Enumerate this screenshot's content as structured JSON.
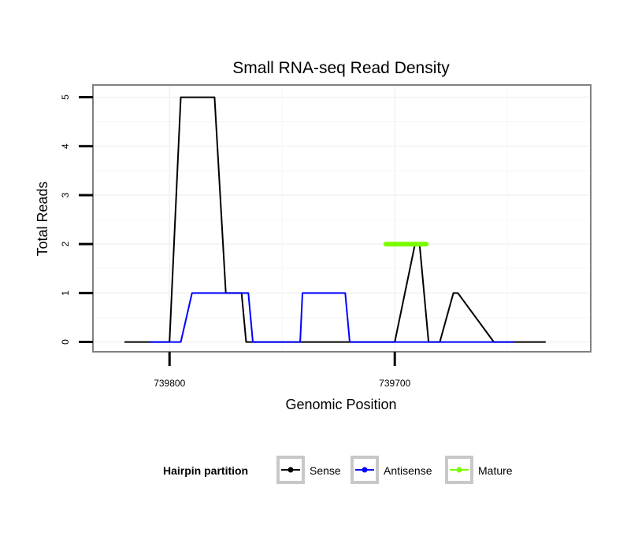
{
  "colors": {
    "sense": "#000000",
    "antisense": "#0000ff",
    "mature": "#7cfc00"
  },
  "chart_data": {
    "type": "line",
    "title": "Small RNA-seq Read Density",
    "xlabel": "Genomic Position",
    "ylabel": "Total Reads",
    "x_reversed": true,
    "xlim": [
      739834,
      739613
    ],
    "ylim": [
      -0.2,
      5.25
    ],
    "x_ticks": [
      {
        "value": 739800,
        "label": "739800"
      },
      {
        "value": 739700,
        "label": "739700"
      }
    ],
    "y_ticks": [
      {
        "value": 0,
        "label": "0"
      },
      {
        "value": 1,
        "label": "1"
      },
      {
        "value": 2,
        "label": "2"
      },
      {
        "value": 3,
        "label": "3"
      },
      {
        "value": 4,
        "label": "4"
      },
      {
        "value": 5,
        "label": "5"
      }
    ],
    "legend": {
      "title": "Hairpin partition",
      "position": "bottom"
    },
    "series": [
      {
        "name": "Sense",
        "color": "#000000",
        "x": [
          739820,
          739800,
          739795,
          739780,
          739775,
          739768,
          739766,
          739700,
          739691,
          739689,
          739685,
          739685,
          739680,
          739674,
          739672,
          739656,
          739655,
          739646,
          739633
        ],
        "y": [
          0,
          0,
          5,
          5,
          1,
          1,
          0,
          0,
          2,
          2,
          0,
          0,
          0,
          1,
          1,
          0,
          0,
          0,
          0
        ]
      },
      {
        "name": "Antisense",
        "color": "#0000ff",
        "x": [
          739809,
          739795,
          739790,
          739765,
          739763,
          739742,
          739741,
          739722,
          739720,
          739654,
          739647
        ],
        "y": [
          0,
          0,
          1,
          1,
          0,
          0,
          1,
          1,
          0,
          0,
          0
        ]
      },
      {
        "name": "Mature",
        "color": "#7cfc00",
        "x": [
          739704,
          739686
        ],
        "y": [
          2,
          2
        ]
      }
    ]
  }
}
